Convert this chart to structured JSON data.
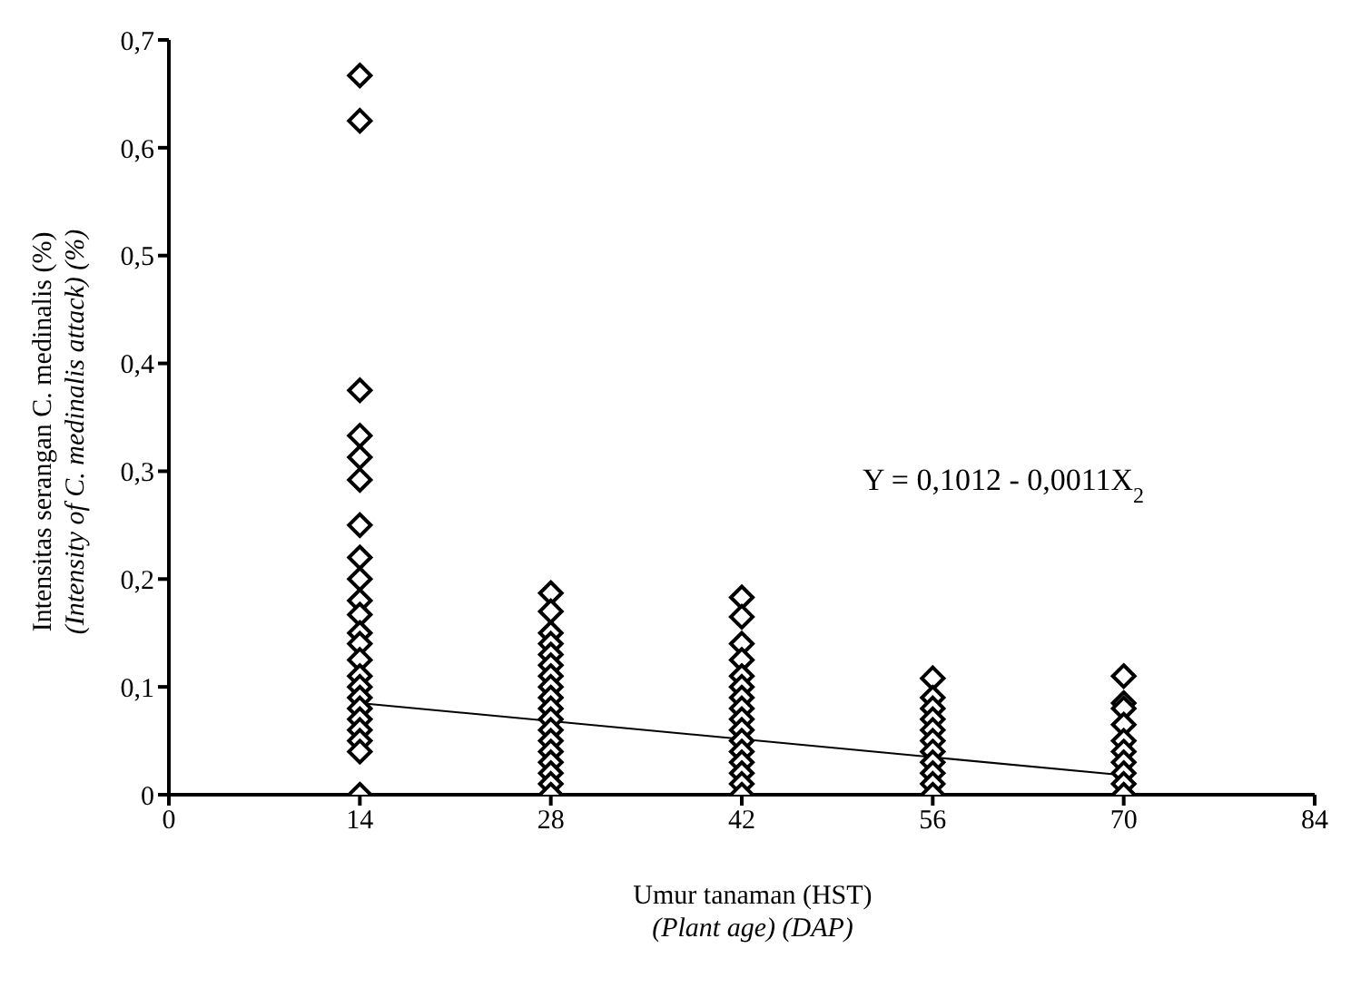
{
  "chart_data": {
    "type": "scatter",
    "xlabel": "Umur tanaman (HST)\n(Plant age) (DAP)",
    "ylabel": "Intensitas serangan C. medinalis (%)\n(Intensity of C. medinalis attack) (%)",
    "marker": "diamond",
    "grid": false,
    "xlim": [
      0,
      84
    ],
    "xticks": [
      0,
      14,
      28,
      42,
      56,
      70,
      84
    ],
    "ylim": [
      0,
      0.7
    ],
    "yticks": [
      0,
      {
        "value": 0.1,
        "label": "0,1"
      },
      {
        "value": 0.2,
        "label": "0,2"
      },
      {
        "value": 0.3,
        "label": "0,3"
      },
      {
        "value": 0.4,
        "label": "0,4"
      },
      {
        "value": 0.5,
        "label": "0,5"
      },
      {
        "value": 0.6,
        "label": "0,6"
      },
      {
        "value": 0.7,
        "label": "0,7"
      }
    ],
    "annotations": [
      "Y = 0,1012 - 0,0011X$_{2}$"
    ],
    "series": [
      {
        "color": "#000000",
        "x": [
          14,
          14,
          14,
          14,
          14,
          14,
          14,
          14,
          14,
          14,
          14,
          14,
          14,
          14,
          14,
          14,
          14,
          14,
          14,
          14,
          14,
          14,
          14
        ],
        "values": [
          0.667,
          0.625,
          0.375,
          0.333,
          0.313,
          0.292,
          0.25,
          0.22,
          0.2,
          0.18,
          0.167,
          0.15,
          0.14,
          0.125,
          0.11,
          0.1,
          0.09,
          0.08,
          0.07,
          0.06,
          0.05,
          0.04,
          0
        ]
      },
      {
        "color": "#000000",
        "x": [
          28,
          28,
          28,
          28,
          28,
          28,
          28,
          28,
          28,
          28,
          28,
          28,
          28,
          28,
          28,
          28,
          28,
          28
        ],
        "values": [
          0.187,
          0.17,
          0.15,
          0.14,
          0.13,
          0.12,
          0.11,
          0.1,
          0.09,
          0.08,
          0.07,
          0.06,
          0.05,
          0.04,
          0.03,
          0.02,
          0.01,
          0
        ]
      },
      {
        "color": "#000000",
        "x": [
          42,
          42,
          42,
          42,
          42,
          42,
          42,
          42,
          42,
          42,
          42,
          42,
          42,
          42,
          42,
          42
        ],
        "values": [
          0.183,
          0.165,
          0.14,
          0.125,
          0.11,
          0.1,
          0.09,
          0.08,
          0.07,
          0.06,
          0.05,
          0.04,
          0.03,
          0.02,
          0.01,
          0
        ]
      },
      {
        "color": "#000000",
        "x": [
          56,
          56,
          56,
          56,
          56,
          56,
          56,
          56,
          56,
          56,
          56
        ],
        "values": [
          0.108,
          0.09,
          0.08,
          0.07,
          0.06,
          0.05,
          0.04,
          0.03,
          0.02,
          0.01,
          0
        ]
      },
      {
        "color": "#000000",
        "x": [
          70,
          70,
          70,
          70,
          70,
          70,
          70,
          70,
          70,
          70
        ],
        "values": [
          0.11,
          0.085,
          0.08,
          0.065,
          0.05,
          0.04,
          0.03,
          0.02,
          0.01,
          0
        ]
      },
      {
        "type": "line",
        "marker": "none",
        "color": "#000000",
        "x": [
          14,
          70
        ],
        "values": [
          0.085,
          0.018
        ]
      }
    ]
  }
}
